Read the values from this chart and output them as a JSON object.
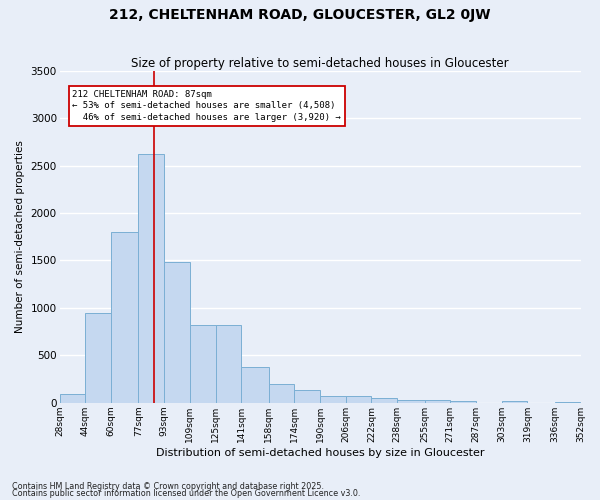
{
  "title": "212, CHELTENHAM ROAD, GLOUCESTER, GL2 0JW",
  "subtitle": "Size of property relative to semi-detached houses in Gloucester",
  "xlabel": "Distribution of semi-detached houses by size in Gloucester",
  "ylabel": "Number of semi-detached properties",
  "property_label": "212 CHELTENHAM ROAD: 87sqm",
  "pct_smaller": "53% of semi-detached houses are smaller (4,508)",
  "pct_larger": "46% of semi-detached houses are larger (3,920)",
  "property_sqm": 87,
  "bin_edges": [
    28,
    44,
    60,
    77,
    93,
    109,
    125,
    141,
    158,
    174,
    190,
    206,
    222,
    238,
    255,
    271,
    287,
    303,
    319,
    336,
    352
  ],
  "bin_labels": [
    "28sqm",
    "44sqm",
    "60sqm",
    "77sqm",
    "93sqm",
    "109sqm",
    "125sqm",
    "141sqm",
    "158sqm",
    "174sqm",
    "190sqm",
    "206sqm",
    "222sqm",
    "238sqm",
    "255sqm",
    "271sqm",
    "287sqm",
    "303sqm",
    "319sqm",
    "336sqm",
    "352sqm"
  ],
  "bar_heights": [
    95,
    950,
    1800,
    2620,
    1480,
    820,
    820,
    380,
    200,
    140,
    75,
    75,
    50,
    30,
    25,
    15,
    0,
    15,
    0,
    5
  ],
  "bar_color": "#c5d8f0",
  "bar_edge_color": "#7bafd4",
  "vline_color": "#cc0000",
  "vline_sqm": 87,
  "ylim": [
    0,
    3500
  ],
  "yticks": [
    0,
    500,
    1000,
    1500,
    2000,
    2500,
    3000,
    3500
  ],
  "bg_color": "#e8eef8",
  "grid_color": "#ffffff",
  "footer1": "Contains HM Land Registry data © Crown copyright and database right 2025.",
  "footer2": "Contains public sector information licensed under the Open Government Licence v3.0."
}
